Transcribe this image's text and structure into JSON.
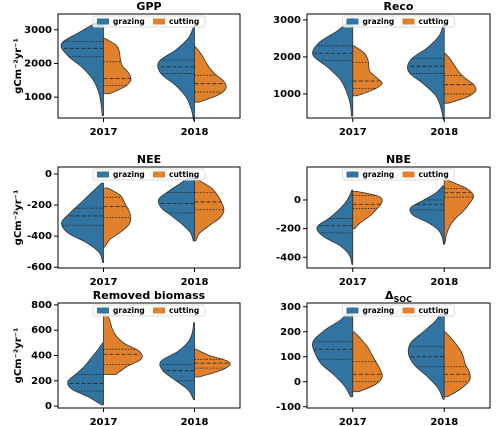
{
  "chart_data": [
    {
      "type": "violin",
      "title": "GPP",
      "ylabel": "gCm⁻²yr⁻¹",
      "categories": [
        "2017",
        "2018"
      ],
      "ylim": [
        380,
        3470
      ],
      "yticks": [
        1000,
        2000,
        3000
      ],
      "legend": "upper center",
      "series": [
        {
          "name": "grazing",
          "color": "#3274a1",
          "values": [
            {
              "min": 450,
              "q1": 2200,
              "median": 2450,
              "q3": 2650,
              "max": 3300,
              "density": [
                0.03,
                0.06,
                0.12,
                0.25,
                0.5,
                0.85,
                1.0,
                0.55,
                0.05
              ]
            },
            {
              "min": 300,
              "q1": 1700,
              "median": 1900,
              "q3": 2100,
              "max": 3100,
              "density": [
                0.02,
                0.08,
                0.2,
                0.45,
                0.8,
                0.85,
                0.45,
                0.15,
                0.02
              ]
            }
          ]
        },
        {
          "name": "cutting",
          "color": "#e1812c",
          "values": [
            {
              "min": 1100,
              "q1": 1350,
              "median": 1550,
              "q3": 2050,
              "max": 2750,
              "density": [
                0.15,
                0.5,
                0.65,
                0.6,
                0.45,
                0.4,
                0.38,
                0.3,
                0.03
              ]
            },
            {
              "min": 850,
              "q1": 1150,
              "median": 1400,
              "q3": 1650,
              "max": 2500,
              "density": [
                0.1,
                0.55,
                0.75,
                0.7,
                0.5,
                0.35,
                0.25,
                0.15,
                0.02
              ]
            }
          ]
        }
      ]
    },
    {
      "type": "violin",
      "title": "Reco",
      "categories": [
        "2017",
        "2018"
      ],
      "ylim": [
        350,
        3160
      ],
      "yticks": [
        1000,
        2000,
        3000
      ],
      "legend": "upper center",
      "series": [
        {
          "name": "grazing",
          "color": "#3274a1",
          "values": [
            {
              "min": 400,
              "q1": 1900,
              "median": 2100,
              "q3": 2300,
              "max": 3050,
              "density": [
                0.03,
                0.06,
                0.15,
                0.3,
                0.6,
                0.95,
                0.8,
                0.35,
                0.03
              ]
            },
            {
              "min": 300,
              "q1": 1550,
              "median": 1750,
              "q3": 1950,
              "max": 2900,
              "density": [
                0.02,
                0.08,
                0.2,
                0.5,
                0.85,
                0.8,
                0.4,
                0.12,
                0.02
              ]
            }
          ]
        },
        {
          "name": "cutting",
          "color": "#e1812c",
          "values": [
            {
              "min": 950,
              "q1": 1150,
              "median": 1350,
              "q3": 1850,
              "max": 2300,
              "density": [
                0.1,
                0.5,
                0.7,
                0.55,
                0.4,
                0.38,
                0.35,
                0.25,
                0.03
              ]
            },
            {
              "min": 750,
              "q1": 1000,
              "median": 1250,
              "q3": 1500,
              "max": 2100,
              "density": [
                0.1,
                0.55,
                0.75,
                0.7,
                0.5,
                0.35,
                0.25,
                0.15,
                0.02
              ]
            }
          ]
        }
      ]
    },
    {
      "type": "violin",
      "title": "NEE",
      "ylabel": "gCm⁻²yr⁻¹",
      "categories": [
        "2017",
        "2018"
      ],
      "ylim": [
        -605,
        45
      ],
      "yticks": [
        -600,
        -400,
        -200,
        0
      ],
      "legend": "upper center",
      "series": [
        {
          "name": "grazing",
          "color": "#3274a1",
          "values": [
            {
              "min": -570,
              "q1": -330,
              "median": -270,
              "q3": -220,
              "max": -60,
              "density": [
                0.02,
                0.1,
                0.4,
                0.85,
                1.0,
                0.8,
                0.55,
                0.3,
                0.05
              ]
            },
            {
              "min": -430,
              "q1": -250,
              "median": -190,
              "q3": -120,
              "max": 0,
              "density": [
                0.03,
                0.1,
                0.3,
                0.55,
                0.8,
                0.85,
                0.6,
                0.3,
                0.05
              ]
            }
          ]
        },
        {
          "name": "cutting",
          "color": "#e1812c",
          "values": [
            {
              "min": -470,
              "q1": -280,
              "median": -210,
              "q3": -150,
              "max": -90,
              "density": [
                0.03,
                0.15,
                0.4,
                0.6,
                0.65,
                0.6,
                0.5,
                0.4,
                0.1
              ]
            },
            {
              "min": -430,
              "q1": -230,
              "median": -180,
              "q3": -120,
              "max": -40,
              "density": [
                0.03,
                0.12,
                0.35,
                0.6,
                0.7,
                0.65,
                0.55,
                0.4,
                0.1
              ]
            }
          ]
        }
      ]
    },
    {
      "type": "violin",
      "title": "NBE",
      "categories": [
        "2017",
        "2018"
      ],
      "ylim": [
        -475,
        230
      ],
      "yticks": [
        -400,
        -200,
        0
      ],
      "legend": "upper center",
      "series": [
        {
          "name": "grazing",
          "color": "#3274a1",
          "values": [
            {
              "min": -450,
              "q1": -230,
              "median": -180,
              "q3": -130,
              "max": 70,
              "density": [
                0.02,
                0.08,
                0.3,
                0.7,
                0.85,
                0.55,
                0.3,
                0.12,
                0.02
              ]
            },
            {
              "min": -310,
              "q1": -70,
              "median": -30,
              "q3": 0,
              "max": 100,
              "density": [
                0.02,
                0.05,
                0.15,
                0.4,
                0.75,
                0.8,
                0.5,
                0.2,
                0.03
              ]
            }
          ]
        },
        {
          "name": "cutting",
          "color": "#e1812c",
          "values": [
            {
              "min": -200,
              "q1": -60,
              "median": -30,
              "q3": 30,
              "max": 60,
              "density": [
                0.05,
                0.15,
                0.3,
                0.45,
                0.55,
                0.65,
                0.7,
                0.6,
                0.1
              ]
            },
            {
              "min": -300,
              "q1": 20,
              "median": 50,
              "q3": 80,
              "max": 140,
              "density": [
                0.02,
                0.05,
                0.12,
                0.25,
                0.45,
                0.6,
                0.7,
                0.5,
                0.05
              ]
            }
          ]
        }
      ]
    },
    {
      "type": "violin",
      "title": "Removed biomass",
      "ylabel": "gCm⁻²yr⁻¹",
      "categories": [
        "2017",
        "2018"
      ],
      "ylim": [
        -15,
        815
      ],
      "yticks": [
        0,
        200,
        400,
        600,
        800
      ],
      "legend": "upper center",
      "series": [
        {
          "name": "grazing",
          "color": "#3274a1",
          "values": [
            {
              "min": 10,
              "q1": 120,
              "median": 180,
              "q3": 250,
              "max": 500,
              "density": [
                0.05,
                0.35,
                0.75,
                0.85,
                0.65,
                0.45,
                0.3,
                0.15,
                0.02
              ]
            },
            {
              "min": 50,
              "q1": 200,
              "median": 280,
              "q3": 330,
              "max": 660,
              "density": [
                0.02,
                0.15,
                0.45,
                0.75,
                0.8,
                0.4,
                0.15,
                0.05,
                0.02
              ]
            }
          ]
        },
        {
          "name": "cutting",
          "color": "#e1812c",
          "values": [
            {
              "min": 250,
              "q1": 330,
              "median": 410,
              "q3": 450,
              "max": 740,
              "density": [
                0.3,
                0.55,
                0.9,
                0.85,
                0.5,
                0.3,
                0.2,
                0.15,
                0.05
              ]
            },
            {
              "min": 230,
              "q1": 300,
              "median": 340,
              "q3": 370,
              "max": 450,
              "density": [
                0.1,
                0.4,
                0.65,
                0.8,
                0.85,
                0.7,
                0.4,
                0.2,
                0.03
              ]
            }
          ]
        }
      ]
    },
    {
      "type": "violin",
      "title": "Δ",
      "title_sub": "SOC",
      "categories": [
        "2017",
        "2018"
      ],
      "ylim": [
        -105,
        315
      ],
      "yticks": [
        -100,
        0,
        100,
        200,
        300
      ],
      "legend": "upper center",
      "series": [
        {
          "name": "grazing",
          "color": "#3274a1",
          "values": [
            {
              "min": -60,
              "q1": 90,
              "median": 130,
              "q3": 160,
              "max": 290,
              "density": [
                0.05,
                0.2,
                0.45,
                0.75,
                0.9,
                0.95,
                0.7,
                0.3,
                0.03
              ]
            },
            {
              "min": -70,
              "q1": 60,
              "median": 100,
              "q3": 140,
              "max": 290,
              "density": [
                0.03,
                0.15,
                0.4,
                0.7,
                0.85,
                0.8,
                0.5,
                0.2,
                0.03
              ]
            }
          ]
        },
        {
          "name": "cutting",
          "color": "#e1812c",
          "values": [
            {
              "min": -40,
              "q1": 0,
              "median": 30,
              "q3": 80,
              "max": 200,
              "density": [
                0.15,
                0.55,
                0.7,
                0.65,
                0.55,
                0.45,
                0.35,
                0.2,
                0.03
              ]
            },
            {
              "min": -60,
              "q1": 0,
              "median": 30,
              "q3": 60,
              "max": 200,
              "density": [
                0.08,
                0.4,
                0.6,
                0.6,
                0.5,
                0.45,
                0.35,
                0.2,
                0.02
              ]
            }
          ]
        }
      ]
    }
  ]
}
